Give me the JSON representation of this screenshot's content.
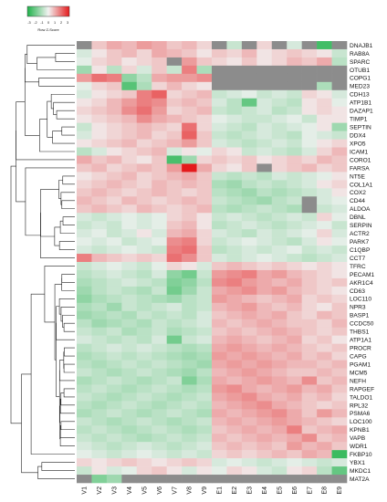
{
  "legend": {
    "title": "Row Z-Score",
    "ticks": [
      "-3",
      "-2",
      "-1",
      "0",
      "1",
      "2",
      "3"
    ]
  },
  "colors": {
    "low": "#1fb24a",
    "mid": "#f2f2f2",
    "high": "#e41a1c",
    "missing": "#8c8c8c"
  },
  "chart_data": {
    "type": "heatmap",
    "columns": [
      "V1",
      "V2",
      "V3",
      "V4",
      "V5",
      "V6",
      "V7",
      "V8",
      "V9",
      "E1",
      "E2",
      "E3",
      "E4",
      "E5",
      "E6",
      "E7",
      "E8",
      "E9"
    ],
    "rows": [
      "DNAJB1",
      "RAB8A",
      "SPARC",
      "OTUB1",
      "COPG1",
      "MED23",
      "CDH13",
      "ATP1B1",
      "DAZAP1",
      "TIMP1",
      "SEPTIN",
      "DDX4",
      "XPO5",
      "ICAM1",
      "CORO1",
      "FARSA",
      "NT5E",
      "COL1A1",
      "COX2",
      "CD44",
      "ALDOA",
      "DBNL",
      "SERPIN",
      "ACTR2",
      "PARK7",
      "C1QBP",
      "CCT7",
      "TFRC",
      "PECAM1",
      "AKR1C4",
      "CD63",
      "LOC110",
      "NPR3",
      "BASP1",
      "CCDC50",
      "THBS1",
      "ATP1A1",
      "PROCR",
      "CAPG",
      "PGAM1",
      "MCM5",
      "NEFH",
      "RAPGEF",
      "TALDO1",
      "RPL32",
      "PSMA6",
      "LOC100",
      "KPNB1",
      "VAPB",
      "WDR1",
      "FKBP10",
      "YBX1",
      "MKDC1",
      "MAT2A"
    ],
    "value_range": [
      -3,
      3
    ],
    "missing_value": null,
    "values": [
      [
        null,
        0.6,
        1.0,
        0.8,
        1.2,
        1.0,
        0.6,
        0.8,
        0.4,
        null,
        -0.6,
        null,
        0.4,
        null,
        -0.4,
        null,
        -2.5,
        null
      ],
      [
        -0.4,
        0.2,
        0.6,
        0.8,
        0.4,
        1.0,
        0.8,
        0.6,
        0.2,
        0.6,
        0.4,
        0.8,
        0.2,
        0.4,
        0.6,
        0.4,
        0.2,
        -0.6
      ],
      [
        -0.2,
        0.4,
        0.6,
        0.2,
        0.4,
        0.6,
        null,
        1.2,
        0.6,
        0.4,
        0.2,
        0.6,
        0.2,
        0.4,
        0.8,
        0.6,
        1.0,
        -0.8
      ],
      [
        -1.2,
        0.2,
        -0.8,
        0.4,
        -0.4,
        0.6,
        -0.6,
        1.6,
        -1.0,
        null,
        null,
        null,
        null,
        null,
        null,
        null,
        null,
        null
      ],
      [
        1.2,
        1.8,
        1.6,
        -1.4,
        -0.8,
        1.0,
        1.2,
        1.2,
        1.4,
        null,
        null,
        null,
        null,
        null,
        null,
        null,
        null,
        null
      ],
      [
        -0.2,
        0.4,
        0.6,
        -2.2,
        -1.0,
        0.4,
        0.8,
        0.4,
        0.2,
        null,
        null,
        null,
        null,
        null,
        null,
        null,
        -1.0,
        null
      ],
      [
        -0.4,
        0.2,
        0.4,
        0.6,
        1.6,
        2.0,
        0.4,
        0.6,
        0.8,
        -0.6,
        -0.4,
        -0.2,
        -0.6,
        -0.4,
        -0.6,
        0.4,
        0.2,
        -0.4
      ],
      [
        0.2,
        0.4,
        0.8,
        1.2,
        1.6,
        1.4,
        0.6,
        0.8,
        0.6,
        -0.4,
        -0.8,
        -2.0,
        -0.4,
        -0.6,
        -0.8,
        0.2,
        0.4,
        -0.2
      ],
      [
        0.4,
        0.6,
        0.8,
        1.4,
        1.8,
        1.2,
        0.4,
        0.6,
        0.8,
        -0.6,
        -0.8,
        -0.6,
        -0.4,
        -0.8,
        -0.6,
        0.2,
        0.4,
        0.2
      ],
      [
        0.2,
        0.4,
        0.6,
        0.8,
        1.4,
        1.0,
        0.8,
        0.6,
        0.4,
        -0.2,
        -0.4,
        -0.6,
        -0.6,
        -0.4,
        -0.2,
        -0.6,
        0.2,
        0.2
      ],
      [
        -0.6,
        0.2,
        0.4,
        0.6,
        0.8,
        0.6,
        0.4,
        1.8,
        0.4,
        -0.4,
        -0.6,
        -0.8,
        -0.4,
        -0.6,
        -0.4,
        -0.2,
        0.2,
        -1.2
      ],
      [
        -0.4,
        0.2,
        0.4,
        0.6,
        0.8,
        0.4,
        0.6,
        2.0,
        0.6,
        -0.6,
        -0.8,
        -0.6,
        -0.4,
        -0.6,
        -0.8,
        -0.2,
        -0.4,
        -0.6
      ],
      [
        0.2,
        0.4,
        0.6,
        0.8,
        0.4,
        0.6,
        0.8,
        1.2,
        0.6,
        -0.4,
        -0.6,
        -0.8,
        -0.6,
        -0.4,
        -0.6,
        -0.2,
        0.2,
        0.4
      ],
      [
        -0.8,
        -0.4,
        0.2,
        0.4,
        0.6,
        0.8,
        -0.4,
        0.2,
        -0.2,
        0.4,
        0.2,
        -0.6,
        -0.4,
        -0.6,
        -0.8,
        -0.4,
        0.4,
        0.8
      ],
      [
        1.0,
        0.6,
        0.8,
        0.4,
        0.2,
        0.6,
        -2.4,
        -1.2,
        0.4,
        0.6,
        0.4,
        0.6,
        0.2,
        0.4,
        0.6,
        0.4,
        0.8,
        0.6
      ],
      [
        0.6,
        0.8,
        0.4,
        0.6,
        0.8,
        0.6,
        1.2,
        3.0,
        1.0,
        0.4,
        0.2,
        0.6,
        null,
        0.4,
        0.6,
        0.8,
        0.4,
        0.6
      ],
      [
        0.2,
        0.4,
        0.6,
        0.8,
        0.4,
        0.6,
        0.8,
        1.0,
        0.6,
        -0.6,
        -0.8,
        -0.6,
        -0.8,
        -0.4,
        -0.6,
        -0.4,
        -0.2,
        0.2
      ],
      [
        0.4,
        0.6,
        0.8,
        0.6,
        0.4,
        0.8,
        0.6,
        0.8,
        0.6,
        -1.0,
        -1.2,
        -0.8,
        -0.6,
        -0.8,
        -0.6,
        -0.4,
        0.2,
        0.4
      ],
      [
        0.6,
        0.8,
        0.6,
        0.4,
        0.6,
        0.8,
        0.6,
        0.4,
        0.6,
        -0.8,
        -1.0,
        -1.2,
        -0.8,
        -1.0,
        -0.8,
        -0.6,
        -0.4,
        0.2
      ],
      [
        0.8,
        0.6,
        0.4,
        0.8,
        0.6,
        0.4,
        0.6,
        0.8,
        0.6,
        -0.6,
        -0.8,
        -1.0,
        -1.2,
        -0.8,
        -0.6,
        null,
        -0.4,
        -0.2
      ],
      [
        0.6,
        0.8,
        0.6,
        0.4,
        0.8,
        0.6,
        0.4,
        0.6,
        0.8,
        -0.8,
        -1.0,
        -0.8,
        -0.6,
        -0.8,
        -1.0,
        null,
        -0.6,
        -0.4
      ],
      [
        -0.4,
        -0.6,
        -0.4,
        -0.2,
        -0.4,
        -0.2,
        0.4,
        0.6,
        0.2,
        -0.6,
        -0.4,
        -0.6,
        -0.8,
        -0.6,
        -0.4,
        -0.6,
        0.4,
        -0.2
      ],
      [
        -0.6,
        -0.4,
        -0.6,
        -0.2,
        -0.4,
        -0.2,
        0.6,
        0.8,
        0.2,
        -0.8,
        -0.6,
        -0.4,
        -0.6,
        -0.8,
        -0.6,
        -0.4,
        -0.2,
        -0.6
      ],
      [
        -0.4,
        -0.2,
        -0.6,
        -0.4,
        0.2,
        -0.4,
        0.8,
        1.0,
        0.4,
        -0.4,
        -0.6,
        -0.8,
        -0.4,
        -0.6,
        -0.4,
        -0.2,
        0.4,
        -0.4
      ],
      [
        -0.2,
        -0.4,
        -0.2,
        -0.6,
        -0.4,
        -0.2,
        1.4,
        1.6,
        0.4,
        -0.6,
        -0.4,
        -0.2,
        -0.4,
        -0.6,
        -0.8,
        -0.4,
        0.2,
        -0.2
      ],
      [
        -0.4,
        -0.6,
        -0.4,
        -0.2,
        -0.4,
        -0.6,
        1.6,
        1.8,
        0.6,
        -0.8,
        -0.6,
        -0.4,
        -0.6,
        -0.4,
        -0.2,
        -0.6,
        -0.4,
        -0.6
      ],
      [
        1.6,
        0.8,
        0.6,
        0.4,
        0.6,
        0.4,
        1.8,
        1.4,
        0.6,
        -0.4,
        -0.6,
        -0.4,
        -0.2,
        -0.4,
        -0.6,
        -0.8,
        -0.6,
        -0.4
      ],
      [
        -0.6,
        -0.4,
        -0.2,
        -0.4,
        -0.6,
        -0.2,
        0.4,
        0.2,
        -0.4,
        0.6,
        0.8,
        0.6,
        0.4,
        0.6,
        0.4,
        0.2,
        0.4,
        0.2
      ],
      [
        -0.8,
        -0.6,
        -0.4,
        -0.6,
        -0.8,
        -0.4,
        -1.4,
        -1.8,
        -0.6,
        1.2,
        1.4,
        1.6,
        1.0,
        1.2,
        0.8,
        0.6,
        0.4,
        0.2
      ],
      [
        -1.0,
        -0.8,
        -0.6,
        -0.4,
        -0.6,
        -0.8,
        -1.6,
        -1.4,
        -0.8,
        1.4,
        1.6,
        1.2,
        1.0,
        0.8,
        1.0,
        0.6,
        0.4,
        0.6
      ],
      [
        -1.2,
        -0.8,
        -0.6,
        -0.8,
        -1.0,
        -0.6,
        -1.8,
        -1.2,
        -0.6,
        1.0,
        1.2,
        1.4,
        1.0,
        1.2,
        0.8,
        0.6,
        0.4,
        0.2
      ],
      [
        -1.4,
        -1.0,
        -0.8,
        -0.6,
        -0.8,
        -1.0,
        -1.2,
        -0.8,
        -0.6,
        1.2,
        1.0,
        0.8,
        0.6,
        0.8,
        1.0,
        0.4,
        0.6,
        0.4
      ],
      [
        -1.0,
        -0.8,
        -1.2,
        -0.6,
        -0.8,
        -0.6,
        -0.4,
        -0.8,
        -0.6,
        0.8,
        1.0,
        1.2,
        0.8,
        0.6,
        0.8,
        0.4,
        0.2,
        0.6
      ],
      [
        -1.2,
        -1.0,
        -0.8,
        -1.0,
        -0.6,
        -0.8,
        -0.6,
        -0.8,
        -0.4,
        0.6,
        0.8,
        1.0,
        0.8,
        1.0,
        0.6,
        0.4,
        0.8,
        0.6
      ],
      [
        -0.8,
        -1.2,
        -1.0,
        -0.8,
        -1.0,
        -0.6,
        -0.8,
        -0.6,
        -0.4,
        0.8,
        0.6,
        0.8,
        1.0,
        0.8,
        0.6,
        0.6,
        0.4,
        0.8
      ],
      [
        -0.6,
        -0.8,
        -0.6,
        -1.0,
        -0.8,
        -0.6,
        -1.0,
        -0.8,
        -0.6,
        0.6,
        0.8,
        0.6,
        0.8,
        1.0,
        0.8,
        0.6,
        0.4,
        0.6
      ],
      [
        -0.4,
        -0.6,
        -0.8,
        -0.6,
        -0.8,
        -0.4,
        -1.8,
        -0.6,
        -0.4,
        0.8,
        1.0,
        0.8,
        0.6,
        0.8,
        1.0,
        0.4,
        0.6,
        0.2
      ],
      [
        -0.8,
        -0.6,
        -0.4,
        -0.6,
        -0.4,
        -0.6,
        -0.8,
        -1.0,
        -0.8,
        1.0,
        1.2,
        1.0,
        0.8,
        1.0,
        0.8,
        0.6,
        0.4,
        0.6
      ],
      [
        -1.0,
        -0.8,
        -0.6,
        -0.8,
        -0.6,
        -0.8,
        -1.0,
        -1.2,
        -1.0,
        1.2,
        1.0,
        1.2,
        1.0,
        0.8,
        1.0,
        0.6,
        0.8,
        0.4
      ],
      [
        -0.8,
        -1.0,
        -0.8,
        -0.6,
        -0.8,
        -0.6,
        -0.8,
        -1.0,
        -1.2,
        1.0,
        1.2,
        1.0,
        1.2,
        1.0,
        0.8,
        0.8,
        0.6,
        0.8
      ],
      [
        -0.6,
        -0.8,
        -1.0,
        -0.8,
        -0.6,
        -0.8,
        -1.0,
        -1.2,
        -0.8,
        0.8,
        1.0,
        1.2,
        1.0,
        0.8,
        0.6,
        0.6,
        0.8,
        0.6
      ],
      [
        -1.0,
        -0.8,
        -0.6,
        -0.8,
        -1.0,
        -0.8,
        -0.6,
        -1.6,
        -1.0,
        1.0,
        0.8,
        1.0,
        1.2,
        1.0,
        0.8,
        1.4,
        0.6,
        0.8
      ],
      [
        -0.8,
        -0.6,
        -0.8,
        -1.0,
        -0.8,
        -0.6,
        -0.8,
        -1.0,
        -0.8,
        1.2,
        1.4,
        1.0,
        0.8,
        1.0,
        1.2,
        0.8,
        1.0,
        0.6
      ],
      [
        -0.6,
        -0.8,
        -1.0,
        -0.8,
        -0.6,
        -0.8,
        -1.0,
        -0.8,
        -0.6,
        1.0,
        1.2,
        1.4,
        1.0,
        0.8,
        1.0,
        0.6,
        0.8,
        0.4
      ],
      [
        -0.8,
        -1.0,
        -0.8,
        -0.6,
        -0.8,
        -1.0,
        -0.8,
        -0.6,
        -0.8,
        0.8,
        1.0,
        1.2,
        1.4,
        1.0,
        0.8,
        0.6,
        0.4,
        0.6
      ],
      [
        -1.0,
        -0.8,
        -0.6,
        -0.8,
        -1.0,
        -0.8,
        -0.6,
        -0.8,
        -1.0,
        1.0,
        0.8,
        1.0,
        1.2,
        1.4,
        1.0,
        0.6,
        1.2,
        0.8
      ],
      [
        -0.6,
        -0.8,
        -1.0,
        -0.8,
        -0.6,
        -0.8,
        -1.0,
        -0.8,
        -0.6,
        0.8,
        1.0,
        0.8,
        1.0,
        1.2,
        1.0,
        0.8,
        0.6,
        0.4
      ],
      [
        -0.8,
        -0.6,
        -0.8,
        -1.0,
        -0.8,
        -0.6,
        -0.8,
        -1.0,
        -0.8,
        0.6,
        0.8,
        1.0,
        0.8,
        1.0,
        1.6,
        0.6,
        0.8,
        1.0
      ],
      [
        -0.6,
        -0.8,
        -0.6,
        -0.8,
        -1.0,
        -0.8,
        -0.6,
        -0.8,
        -0.6,
        0.8,
        0.6,
        0.8,
        1.0,
        0.8,
        1.0,
        1.4,
        0.6,
        0.8
      ],
      [
        -0.4,
        -0.6,
        -0.8,
        -0.6,
        -0.4,
        -0.6,
        -0.8,
        -0.6,
        -0.4,
        0.6,
        0.8,
        0.6,
        0.8,
        0.6,
        1.2,
        0.8,
        1.0,
        0.6
      ],
      [
        -0.2,
        -0.4,
        -0.6,
        -0.4,
        -0.2,
        -0.4,
        -0.6,
        -0.4,
        -0.6,
        0.4,
        0.6,
        0.4,
        0.6,
        0.8,
        0.6,
        1.0,
        0.8,
        -2.6
      ],
      [
        0.4,
        0.2,
        0.4,
        0.6,
        0.4,
        0.2,
        0.4,
        0.6,
        0.4,
        -0.4,
        -0.2,
        -0.4,
        -0.6,
        -0.4,
        -0.2,
        -0.4,
        -0.6,
        -0.4
      ],
      [
        -0.6,
        0.2,
        -0.4,
        -0.2,
        0.4,
        0.6,
        0.2,
        -0.4,
        0.2,
        -0.2,
        0.4,
        0.2,
        -0.4,
        -0.6,
        0.2,
        0.4,
        -0.8,
        -2.0
      ],
      [
        null,
        -1.6,
        -1.2,
        null,
        null,
        null,
        null,
        null,
        null,
        null,
        null,
        null,
        null,
        null,
        null,
        null,
        null,
        null
      ]
    ]
  }
}
